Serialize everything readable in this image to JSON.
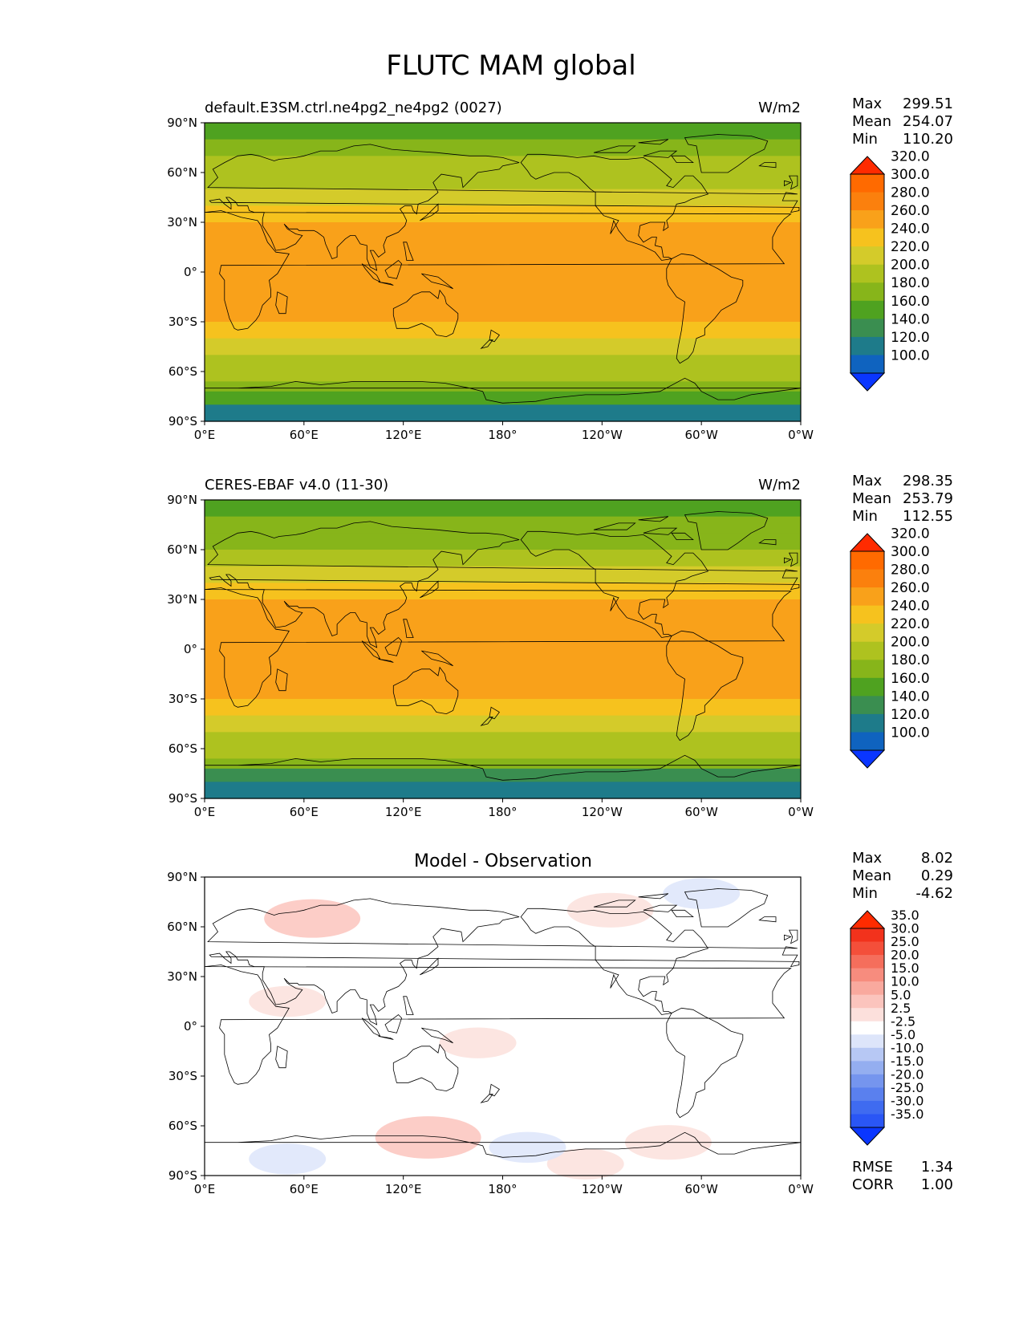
{
  "figure_title": "FLUTC MAM global",
  "panels": [
    {
      "title_left": "default.E3SM.ctrl.ne4pg2_ne4pg2 (0027)",
      "title_center": "",
      "units": "W/m2",
      "stats": [
        {
          "label": "Max",
          "value": "299.51"
        },
        {
          "label": "Mean",
          "value": "254.07"
        },
        {
          "label": "Min",
          "value": "110.20"
        }
      ],
      "extra_stats": []
    },
    {
      "title_left": "CERES-EBAF v4.0 (11-30)",
      "title_center": "",
      "units": "W/m2",
      "stats": [
        {
          "label": "Max",
          "value": "298.35"
        },
        {
          "label": "Mean",
          "value": "253.79"
        },
        {
          "label": "Min",
          "value": "112.55"
        }
      ],
      "extra_stats": []
    },
    {
      "title_left": "",
      "title_center": "Model - Observation",
      "units": "",
      "stats": [
        {
          "label": "Max",
          "value": "8.02"
        },
        {
          "label": "Mean",
          "value": "0.29"
        },
        {
          "label": "Min",
          "value": "-4.62"
        }
      ],
      "extra_stats": [
        {
          "label": "RMSE",
          "value": "1.34"
        },
        {
          "label": "CORR",
          "value": "1.00"
        }
      ]
    }
  ],
  "chart_data": [
    {
      "type": "heatmap",
      "projection": "plate-carree",
      "x_ticks": [
        "0°E",
        "60°E",
        "120°E",
        "180°",
        "120°W",
        "60°W",
        "0°W"
      ],
      "y_ticks": [
        "90°N",
        "60°N",
        "30°N",
        "0°",
        "30°S",
        "60°S",
        "90°S"
      ],
      "xlim": [
        0,
        360
      ],
      "ylim": [
        -90,
        90
      ],
      "colorbar": {
        "levels": [
          "100.0",
          "120.0",
          "140.0",
          "160.0",
          "180.0",
          "200.0",
          "220.0",
          "240.0",
          "260.0",
          "280.0",
          "300.0",
          "320.0"
        ],
        "colors": [
          "#0a36ff",
          "#0f63bf",
          "#1e7b8a",
          "#3a8e50",
          "#4fa220",
          "#87b51a",
          "#aec21f",
          "#d4cb2a",
          "#f6c21e",
          "#f9a11a",
          "#fb800d",
          "#ff6a00",
          "#ff2b00"
        ],
        "extend": "both"
      },
      "zonal_profile": [
        {
          "lat": 90,
          "value": 178
        },
        {
          "lat": 80,
          "value": 180
        },
        {
          "lat": 70,
          "value": 193
        },
        {
          "lat": 60,
          "value": 208
        },
        {
          "lat": 50,
          "value": 226
        },
        {
          "lat": 40,
          "value": 245
        },
        {
          "lat": 30,
          "value": 262
        },
        {
          "lat": 15,
          "value": 265
        },
        {
          "lat": 0,
          "value": 266
        },
        {
          "lat": -15,
          "value": 268
        },
        {
          "lat": -30,
          "value": 265
        },
        {
          "lat": -40,
          "value": 245
        },
        {
          "lat": -50,
          "value": 226
        },
        {
          "lat": -60,
          "value": 212
        },
        {
          "lat": -66,
          "value": 196
        },
        {
          "lat": -72,
          "value": 172
        },
        {
          "lat": -80,
          "value": 148
        },
        {
          "lat": -90,
          "value": 122
        }
      ]
    },
    {
      "type": "heatmap",
      "projection": "plate-carree",
      "x_ticks": [
        "0°E",
        "60°E",
        "120°E",
        "180°",
        "120°W",
        "60°W",
        "0°W"
      ],
      "y_ticks": [
        "90°N",
        "60°N",
        "30°N",
        "0°",
        "30°S",
        "60°S",
        "90°S"
      ],
      "xlim": [
        0,
        360
      ],
      "ylim": [
        -90,
        90
      ],
      "colorbar": {
        "levels": [
          "100.0",
          "120.0",
          "140.0",
          "160.0",
          "180.0",
          "200.0",
          "220.0",
          "240.0",
          "260.0",
          "280.0",
          "300.0",
          "320.0"
        ],
        "colors": [
          "#0a36ff",
          "#0f63bf",
          "#1e7b8a",
          "#3a8e50",
          "#4fa220",
          "#87b51a",
          "#aec21f",
          "#d4cb2a",
          "#f6c21e",
          "#f9a11a",
          "#fb800d",
          "#ff6a00",
          "#ff2b00"
        ],
        "extend": "both"
      },
      "zonal_profile": [
        {
          "lat": 90,
          "value": 177
        },
        {
          "lat": 80,
          "value": 180
        },
        {
          "lat": 70,
          "value": 192
        },
        {
          "lat": 60,
          "value": 207
        },
        {
          "lat": 50,
          "value": 225
        },
        {
          "lat": 40,
          "value": 244
        },
        {
          "lat": 30,
          "value": 262
        },
        {
          "lat": 15,
          "value": 265
        },
        {
          "lat": 0,
          "value": 266
        },
        {
          "lat": -15,
          "value": 268
        },
        {
          "lat": -30,
          "value": 264
        },
        {
          "lat": -40,
          "value": 244
        },
        {
          "lat": -50,
          "value": 225
        },
        {
          "lat": -60,
          "value": 211
        },
        {
          "lat": -66,
          "value": 195
        },
        {
          "lat": -72,
          "value": 171
        },
        {
          "lat": -80,
          "value": 147
        },
        {
          "lat": -90,
          "value": 124
        }
      ]
    },
    {
      "type": "heatmap",
      "projection": "plate-carree",
      "x_ticks": [
        "0°E",
        "60°E",
        "120°E",
        "180°",
        "120°W",
        "60°W",
        "0°W"
      ],
      "y_ticks": [
        "90°N",
        "60°N",
        "30°N",
        "0°",
        "30°S",
        "60°S",
        "90°S"
      ],
      "xlim": [
        0,
        360
      ],
      "ylim": [
        -90,
        90
      ],
      "colorbar": {
        "levels": [
          "-35.0",
          "-30.0",
          "-25.0",
          "-20.0",
          "-15.0",
          "-10.0",
          "-5.0",
          "-2.5",
          "2.5",
          "5.0",
          "10.0",
          "15.0",
          "20.0",
          "25.0",
          "30.0",
          "35.0"
        ],
        "colors": [
          "#0a36ff",
          "#2a56f5",
          "#3f6bf0",
          "#5a80ee",
          "#7595ee",
          "#94aef0",
          "#b7c8f4",
          "#dde5fa",
          "#ffffff",
          "#fce0dc",
          "#fbc4bd",
          "#f9a99e",
          "#f78c7e",
          "#f56e5c",
          "#f44f3a",
          "#f2321c",
          "#ff2b00"
        ],
        "extend": "both"
      },
      "anomalies": [
        {
          "lon": 65,
          "lat": 65,
          "value": 5.0
        },
        {
          "lon": 50,
          "lat": 15,
          "value": 3.0
        },
        {
          "lon": 165,
          "lat": -10,
          "value": 3.0
        },
        {
          "lon": 135,
          "lat": -67,
          "value": 6.0
        },
        {
          "lon": 280,
          "lat": -70,
          "value": 4.0
        },
        {
          "lon": 230,
          "lat": -83,
          "value": 3.0
        },
        {
          "lon": 245,
          "lat": 70,
          "value": 4.0
        },
        {
          "lon": 300,
          "lat": 80,
          "value": -3.0
        },
        {
          "lon": 50,
          "lat": -80,
          "value": -3.0
        },
        {
          "lon": 195,
          "lat": -73,
          "value": -3.0
        }
      ]
    }
  ]
}
